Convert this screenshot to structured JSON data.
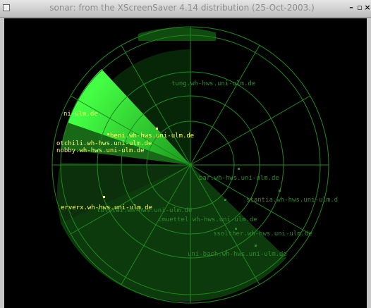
{
  "window": {
    "title": "sonar: from the XScreenSaver 4.14 distribution (25-Oct-2003.)",
    "minimize_glyph": "–",
    "maximize_glyph": "▫",
    "close_glyph": "×"
  },
  "colors": {
    "background": "#000000",
    "ring": "#1e7f1e",
    "sweep": "#33ff33",
    "label_bright": "#ffff55",
    "label_faded": "#2e8a2e",
    "blip": "#ffff55"
  },
  "targets": [
    {
      "label": "tung.wh-hws.uni-ulm.de",
      "bright": false
    },
    {
      "label": "ni-ulm.de",
      "bright": true
    },
    {
      "label": "beni.wh-hws.uni-ulm.de",
      "bright": true
    },
    {
      "label": "otchili.wh-hws.uni-ulm.de",
      "bright": true
    },
    {
      "label": "nobby.wh-hws.uni-ulm.de",
      "bright": true
    },
    {
      "label": "bar.wh-hws.uni-ulm.de",
      "bright": false
    },
    {
      "label": "stantia.wh-hws.uni-ulm.d",
      "bright": false
    },
    {
      "label": "erverx.wh-hws.uni-ulm.de",
      "bright": true
    },
    {
      "label": "tolitai.wh-hws.uni-ulm.de",
      "bright": false
    },
    {
      "label": "cmuettel.wh-hws.uni-ulm.de",
      "bright": false
    },
    {
      "label": "ssolther.wh-hws.uni-ulm.de",
      "bright": false
    },
    {
      "label": "uni-bach.wh-hws.uni-ulm.de",
      "bright": false
    }
  ]
}
